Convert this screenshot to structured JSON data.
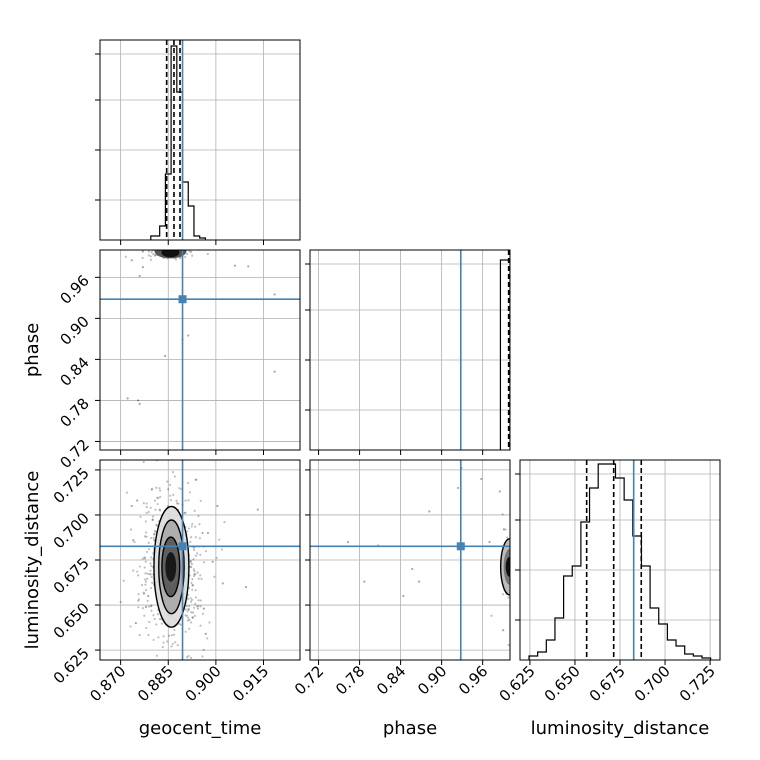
{
  "chart_data": {
    "type": "corner",
    "parameters": [
      "geocent_time",
      "phase",
      "luminosity_distance"
    ],
    "truth_color": "#4682b4",
    "line_color": "#000000",
    "truths": {
      "geocent_time": 0.8895,
      "phase": 0.928,
      "luminosity_distance": 0.6826
    },
    "axes": {
      "geocent_time": {
        "range": [
          0.8635,
          0.9265
        ],
        "ticks": [
          0.87,
          0.885,
          0.9,
          0.915
        ],
        "tick_labels": [
          "0.870",
          "0.885",
          "0.900",
          "0.915"
        ],
        "xlabel": "geocent_time"
      },
      "phase": {
        "range": [
          0.7075,
          1.0
        ],
        "ticks": [
          0.72,
          0.78,
          0.84,
          0.9,
          0.96
        ],
        "tick_labels": [
          "0.72",
          "0.78",
          "0.84",
          "0.90",
          "0.96"
        ],
        "xlabel": "phase",
        "ylabel": "phase"
      },
      "luminosity_distance": {
        "range": [
          0.6195,
          0.7305
        ],
        "ticks": [
          0.625,
          0.65,
          0.675,
          0.7,
          0.725
        ],
        "tick_labels": [
          "0.625",
          "0.650",
          "0.675",
          "0.700",
          "0.725"
        ],
        "xlabel": "luminosity_distance",
        "ylabel": "luminosity_distance"
      }
    },
    "histograms": {
      "geocent_time": {
        "bin_edges": [
          0.8795,
          0.8823,
          0.8841,
          0.8859,
          0.8877,
          0.8895,
          0.8913,
          0.8931,
          0.8949,
          0.8967
        ],
        "counts": [
          0.02,
          0.07,
          0.33,
          0.97,
          0.74,
          0.29,
          0.17,
          0.02,
          0.01
        ],
        "quantiles": [
          0.8845,
          0.8868,
          0.8887
        ]
      },
      "phase": {
        "bin_edges": [
          0.986,
          1.0
        ],
        "counts": [
          0.95
        ],
        "quantiles": [
          0.998,
          0.999,
          1.0
        ]
      },
      "luminosity_distance": {
        "bin_edges": [
          0.6245,
          0.6293,
          0.6341,
          0.6389,
          0.6437,
          0.6485,
          0.6533,
          0.6581,
          0.6629,
          0.6677,
          0.6725,
          0.6773,
          0.6821,
          0.6869,
          0.6917,
          0.6965,
          0.7013,
          0.7061,
          0.7109,
          0.7157,
          0.7205,
          0.7253
        ],
        "counts": [
          0.02,
          0.04,
          0.1,
          0.21,
          0.42,
          0.47,
          0.69,
          0.86,
          0.98,
          0.98,
          0.91,
          0.8,
          0.62,
          0.47,
          0.26,
          0.18,
          0.1,
          0.07,
          0.03,
          0.02,
          0.01
        ],
        "quantiles": [
          0.6565,
          0.6715,
          0.6868
        ]
      }
    },
    "scatter_2d": [
      {
        "x": "geocent_time",
        "y": "phase",
        "points": [
          [
            0.8755,
            0.78
          ],
          [
            0.876,
            0.775
          ],
          [
            0.8722,
            0.783
          ],
          [
            0.9185,
            0.822
          ],
          [
            0.8895,
            0.869
          ],
          [
            0.8913,
            0.875
          ],
          [
            0.884,
            0.845
          ],
          [
            0.877,
            0.975
          ],
          [
            0.8735,
            0.985
          ],
          [
            0.9102,
            0.976
          ],
          [
            0.906,
            0.977
          ],
          [
            0.877,
            0.998
          ],
          [
            0.876,
            0.962
          ],
          [
            0.9185,
            0.935
          ]
        ],
        "dense_center": [
          0.8857,
          0.998
        ]
      },
      {
        "x": "geocent_time",
        "y": "luminosity_distance",
        "contour_levels": [
          {
            "cx": 0.8858,
            "cy": 0.6712,
            "rx": 0.0017,
            "ry": 0.0082
          },
          {
            "cx": 0.8858,
            "cy": 0.6712,
            "rx": 0.0028,
            "ry": 0.0165
          },
          {
            "cx": 0.886,
            "cy": 0.6712,
            "rx": 0.004,
            "ry": 0.026
          },
          {
            "cx": 0.886,
            "cy": 0.6712,
            "rx": 0.0055,
            "ry": 0.0335
          }
        ],
        "points": [
          [
            0.8735,
            0.705
          ],
          [
            0.8752,
            0.708
          ],
          [
            0.8958,
            0.69
          ],
          [
            0.8975,
            0.69
          ],
          [
            0.9005,
            0.705
          ],
          [
            0.9095,
            0.66
          ],
          [
            0.9132,
            0.703
          ],
          [
            0.8748,
            0.64
          ],
          [
            0.878,
            0.649
          ],
          [
            0.8962,
            0.648
          ],
          [
            0.899,
            0.674
          ],
          [
            0.9022,
            0.662
          ],
          [
            0.8968,
            0.634
          ],
          [
            0.874,
            0.686
          ],
          [
            0.8787,
            0.655
          ]
        ]
      },
      {
        "x": "phase",
        "y": "luminosity_distance",
        "points": [
          [
            0.958,
            0.72
          ],
          [
            0.929,
            0.726
          ],
          [
            0.924,
            0.715
          ],
          [
            0.882,
            0.702
          ],
          [
            0.867,
            0.663
          ],
          [
            0.787,
            0.663
          ],
          [
            0.763,
            0.685
          ],
          [
            0.807,
            0.683
          ],
          [
            0.844,
            0.655
          ],
          [
            0.857,
            0.67
          ],
          [
            0.985,
            0.713
          ],
          [
            0.99,
            0.636
          ],
          [
            0.991,
            0.692
          ],
          [
            0.97,
            0.685
          ]
        ],
        "dense_center": [
          0.9995,
          0.6712
        ]
      }
    ]
  }
}
